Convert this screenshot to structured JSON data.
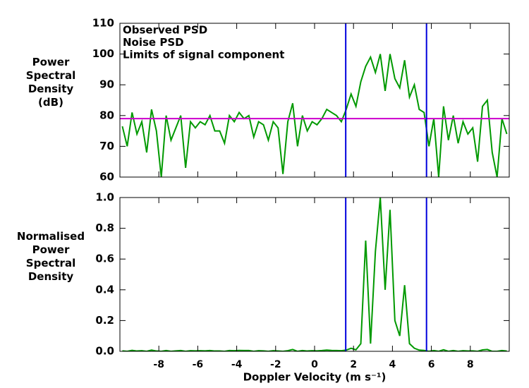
{
  "chart_data": [
    {
      "type": "line",
      "ylabel": [
        "Power",
        "Spectral",
        "Density",
        "(dB)"
      ],
      "xlim": [
        -10,
        10
      ],
      "xticks": [
        -8,
        -6,
        -4,
        -2,
        0,
        2,
        4,
        6,
        8
      ],
      "ylim": [
        60,
        110
      ],
      "yticks": [
        60,
        70,
        80,
        90,
        100,
        110
      ],
      "series": [
        {
          "name": "Observed PSD",
          "color": "#009900",
          "x": [
            -9.875,
            -9.625,
            -9.375,
            -9.125,
            -8.875,
            -8.625,
            -8.375,
            -8.125,
            -7.875,
            -7.625,
            -7.375,
            -7.125,
            -6.875,
            -6.625,
            -6.375,
            -6.125,
            -5.875,
            -5.625,
            -5.375,
            -5.125,
            -4.875,
            -4.625,
            -4.375,
            -4.125,
            -3.875,
            -3.625,
            -3.375,
            -3.125,
            -2.875,
            -2.625,
            -2.375,
            -2.125,
            -1.875,
            -1.625,
            -1.375,
            -1.125,
            -0.875,
            -0.625,
            -0.375,
            -0.125,
            0.125,
            0.375,
            0.625,
            0.875,
            1.125,
            1.375,
            1.625,
            1.875,
            2.125,
            2.375,
            2.625,
            2.875,
            3.125,
            3.375,
            3.625,
            3.875,
            4.125,
            4.375,
            4.625,
            4.875,
            5.125,
            5.375,
            5.625,
            5.875,
            6.125,
            6.375,
            6.625,
            6.875,
            7.125,
            7.375,
            7.625,
            7.875,
            8.125,
            8.375,
            8.625,
            8.875,
            9.125,
            9.375,
            9.625,
            9.875
          ],
          "values": [
            76.5,
            70,
            81,
            74,
            78,
            68,
            82,
            75,
            60,
            80,
            72,
            76,
            80,
            63,
            78,
            76,
            78,
            77,
            80,
            75,
            75,
            71,
            80,
            78,
            81,
            79,
            80,
            73,
            78,
            77,
            72,
            78,
            76,
            61,
            78,
            84,
            70,
            80,
            75,
            78,
            77,
            79,
            82,
            81,
            80,
            78,
            82,
            87,
            83,
            91,
            96,
            99,
            94,
            100,
            88,
            100,
            92,
            89,
            98,
            86,
            90,
            82,
            81,
            70,
            79,
            60,
            83,
            72,
            80,
            71,
            78,
            74,
            76,
            65,
            83,
            85,
            68,
            60,
            79,
            74
          ]
        },
        {
          "name": "Noise PSD",
          "color": "#cc00cc",
          "x": [
            -10,
            10
          ],
          "values": [
            79,
            79
          ]
        }
      ],
      "vlines": {
        "name": "Limits of signal component",
        "color": "#0000dd",
        "x": [
          1.6,
          5.75
        ]
      }
    },
    {
      "type": "line",
      "ylabel": [
        "Normalised",
        "Power",
        "Spectral",
        "Density"
      ],
      "xlabel": "Doppler Velocity (m s⁻¹)",
      "xlim": [
        -10,
        10
      ],
      "xticks": [
        -8,
        -6,
        -4,
        -2,
        0,
        2,
        4,
        6,
        8
      ],
      "ylim": [
        0,
        1
      ],
      "yticks": [
        {
          "value": 0,
          "label": "0.0"
        },
        0.2,
        0.4,
        0.6,
        0.8,
        {
          "value": 1,
          "label": "1.0"
        }
      ],
      "series": [
        {
          "color": "#009900",
          "x": [
            -9.875,
            -9.625,
            -9.375,
            -9.125,
            -8.875,
            -8.625,
            -8.375,
            -8.125,
            -7.875,
            -7.625,
            -7.375,
            -7.125,
            -6.875,
            -6.625,
            -6.375,
            -6.125,
            -5.875,
            -5.625,
            -5.375,
            -5.125,
            -4.875,
            -4.625,
            -4.375,
            -4.125,
            -3.875,
            -3.625,
            -3.375,
            -3.125,
            -2.875,
            -2.625,
            -2.375,
            -2.125,
            -1.875,
            -1.625,
            -1.375,
            -1.125,
            -0.875,
            -0.625,
            -0.375,
            -0.125,
            0.125,
            0.375,
            0.625,
            0.875,
            1.125,
            1.375,
            1.625,
            1.875,
            2.125,
            2.375,
            2.625,
            2.875,
            3.125,
            3.375,
            3.625,
            3.875,
            4.125,
            4.375,
            4.625,
            4.875,
            5.125,
            5.375,
            5.625,
            5.875,
            6.125,
            6.375,
            6.625,
            6.875,
            7.125,
            7.375,
            7.625,
            7.875,
            8.125,
            8.375,
            8.625,
            8.875,
            9.125,
            9.375,
            9.625,
            9.875
          ],
          "values": [
            0.003,
            0,
            0.006,
            0.002,
            0.004,
            0,
            0.008,
            0.002,
            0,
            0.005,
            0,
            0.003,
            0.005,
            0,
            0.004,
            0.003,
            0.004,
            0.003,
            0.005,
            0.002,
            0.002,
            0,
            0.005,
            0.004,
            0.006,
            0.005,
            0.005,
            0,
            0.004,
            0.003,
            0,
            0.004,
            0.002,
            0,
            0.004,
            0.012,
            0,
            0.005,
            0.002,
            0.004,
            0.003,
            0.005,
            0.008,
            0.006,
            0.005,
            0.004,
            0.008,
            0.02,
            0.01,
            0.05,
            0.72,
            0.05,
            0.65,
            1.0,
            0.4,
            0.92,
            0.2,
            0.1,
            0.43,
            0.05,
            0.02,
            0.008,
            0.006,
            0,
            0.005,
            0,
            0.01,
            0,
            0.005,
            0,
            0.004,
            0.002,
            0.003,
            0,
            0.009,
            0.012,
            0,
            0,
            0.005,
            0.002
          ]
        }
      ],
      "vlines": {
        "color": "#0000dd",
        "x": [
          1.6,
          5.75
        ]
      }
    }
  ]
}
